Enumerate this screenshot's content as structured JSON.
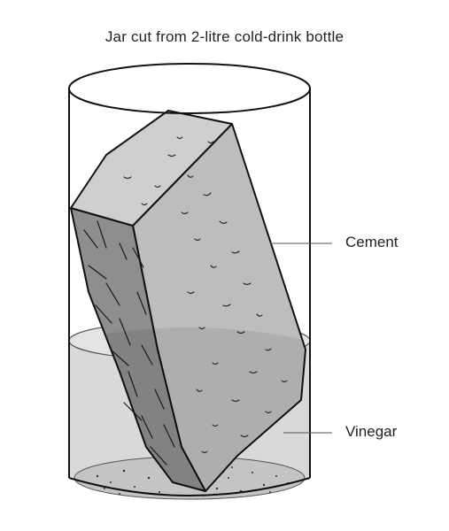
{
  "title": "Jar cut from 2-litre cold-drink bottle",
  "labels": {
    "cement": "Cement",
    "vinegar": "Vinegar"
  },
  "colors": {
    "outline": "#111111",
    "vinegar": "#d9d9d9",
    "cement_light": "#bfbfbf",
    "cement_dark": "#8f8f8f",
    "sediment": "#c8c8c8"
  }
}
